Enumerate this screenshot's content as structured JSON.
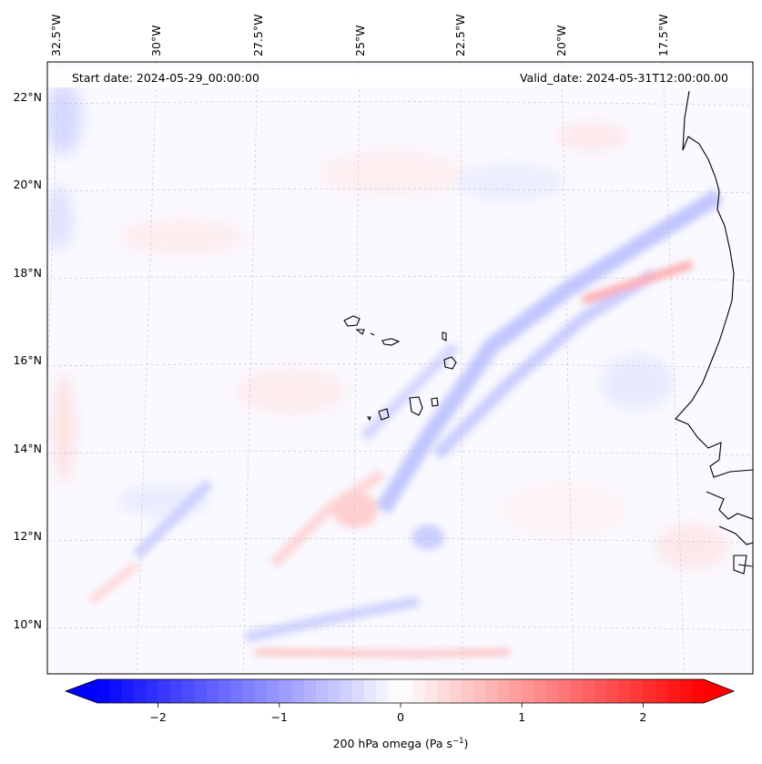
{
  "figure": {
    "start_label": "Start date: 2024-05-29_00:00:00",
    "valid_label": "Valid_date: 2024-05-31T12:00:00.00"
  },
  "map": {
    "lon_labels": [
      "32.5°W",
      "30°W",
      "27.5°W",
      "25°W",
      "22.5°W",
      "20°W",
      "17.5°W"
    ],
    "lat_labels": [
      "22°N",
      "20°N",
      "18°N",
      "16°N",
      "14°N",
      "12°N",
      "10°N"
    ],
    "gridlines": "dashed",
    "coastline_color": "#000000"
  },
  "colorbar": {
    "label_prefix": "200 hPa omega (Pa s",
    "label_exp": "−1",
    "label_suffix": ")",
    "ticks": [
      "−2",
      "−1",
      "0",
      "1",
      "2"
    ],
    "tick_values": [
      -2,
      -1,
      0,
      1,
      2
    ],
    "range": [
      -2.5,
      2.5
    ],
    "colormap": "bwr",
    "colors": {
      "negative": "#0000ff",
      "zero": "#ffffff",
      "positive": "#ff0000"
    }
  }
}
